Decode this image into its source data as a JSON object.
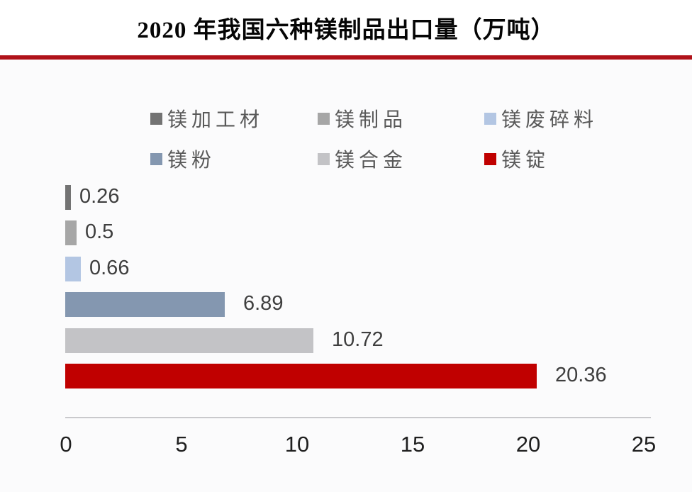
{
  "title": "2020 年我国六种镁制品出口量（万吨）",
  "colors": {
    "title_text": "#050505",
    "divider_red": "#b0131a",
    "page_background": "#fbfbfc",
    "title_background": "#ffffff",
    "legend_text": "#595959",
    "value_label_text": "#3e3e3e",
    "tick_text": "#1f1f1f",
    "axis_line": "#c9c9cc"
  },
  "chart_data": {
    "type": "bar",
    "orientation": "horizontal",
    "title": "2020 年我国六种镁制品出口量（万吨）",
    "categories": [
      "镁加工材",
      "镁制品",
      "镁废碎料",
      "镁粉",
      "镁合金",
      "镁锭"
    ],
    "values": [
      0.26,
      0.5,
      0.66,
      6.89,
      10.72,
      20.36
    ],
    "value_labels": [
      "0.26",
      "0.5",
      "0.66",
      "6.89",
      "10.72",
      "20.36"
    ],
    "bar_colors": [
      "#737373",
      "#a6a6a6",
      "#b3c6e3",
      "#8497b0",
      "#c3c3c6",
      "#c00000"
    ],
    "xlabel": "",
    "ylabel": "",
    "xlim": [
      0,
      25
    ],
    "x_ticks": [
      "0",
      "5",
      "10",
      "15",
      "20",
      "25"
    ],
    "grid": false,
    "legend_position": "top",
    "legend": [
      {
        "label": "镁加工材",
        "color": "#737373"
      },
      {
        "label": "镁制品",
        "color": "#a6a6a6"
      },
      {
        "label": "镁废碎料",
        "color": "#b3c6e3"
      },
      {
        "label": "镁粉",
        "color": "#8497b0"
      },
      {
        "label": "镁合金",
        "color": "#c3c3c6"
      },
      {
        "label": "镁锭",
        "color": "#c00000"
      }
    ]
  }
}
